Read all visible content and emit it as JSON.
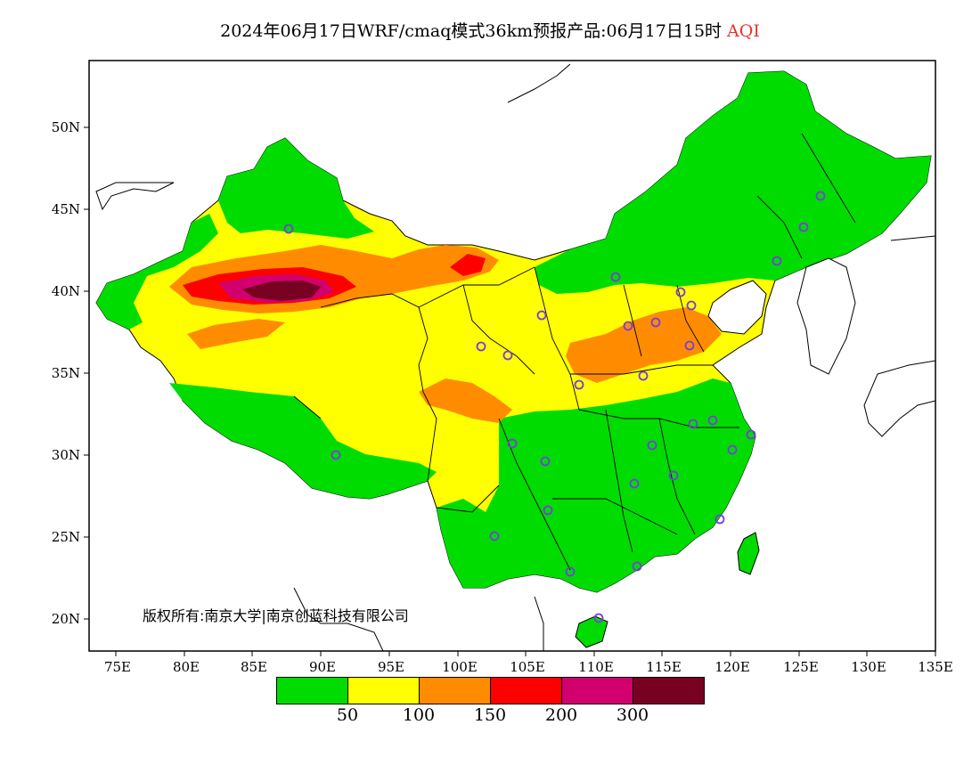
{
  "title": {
    "main": "2024年06月17日WRF/cmaq模式36km预报产品:06月17日15时",
    "variable": "AQI",
    "variable_color": "#e8342c"
  },
  "copyright": "版权所有:南京大学|南京创蓝科技有限公司",
  "axes": {
    "lon_ticks": [
      "75E",
      "80E",
      "85E",
      "90E",
      "95E",
      "100E",
      "105E",
      "110E",
      "115E",
      "120E",
      "125E",
      "130E",
      "135E"
    ],
    "lat_ticks": [
      "50N",
      "45N",
      "40N",
      "35N",
      "30N",
      "25N",
      "20N"
    ]
  },
  "legend": {
    "colors": [
      "#00dc00",
      "#ffff00",
      "#ff8c00",
      "#ff0000",
      "#d2006e",
      "#780020"
    ],
    "labels": [
      "50",
      "100",
      "150",
      "200",
      "300"
    ]
  },
  "map_colors": {
    "good": "#00dc00",
    "moderate": "#ffff00",
    "usg": "#ff8c00",
    "unhealthy": "#ff0000",
    "very_unhealthy": "#d2006e",
    "hazardous": "#780020",
    "station_marker": "#7a3ce0",
    "boundary": "#000000"
  }
}
